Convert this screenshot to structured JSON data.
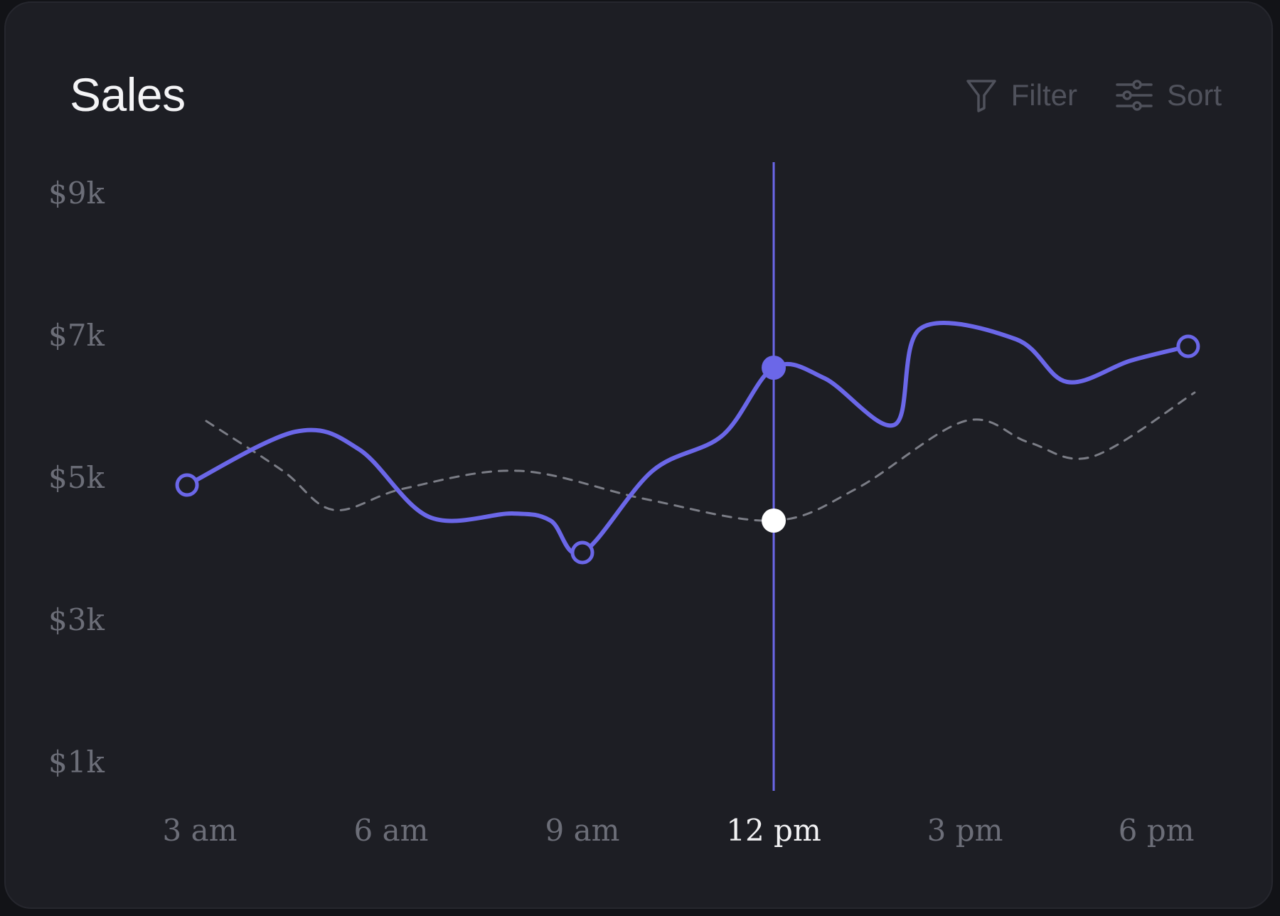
{
  "card": {
    "title": "Sales",
    "toolbar": {
      "filter_label": "Filter",
      "filter_icon": "funnel-icon",
      "sort_label": "Sort",
      "sort_icon": "sliders-icon"
    }
  },
  "colors": {
    "background": "#1d1e24",
    "primary_series": "#6b67e8",
    "comparison_series": "#7b7d86",
    "highlight_point": "#ffffff"
  },
  "chart_data": {
    "type": "line",
    "title": "Sales",
    "y_ticks": [
      "$9k",
      "$7k",
      "$5k",
      "$3k",
      "$1k"
    ],
    "y_tick_values": [
      9,
      7,
      5,
      3,
      1
    ],
    "x_ticks": [
      "3 am",
      "6 am",
      "9 am",
      "12 pm",
      "3 pm",
      "6 pm"
    ],
    "x_tick_values": [
      3,
      6,
      9,
      12,
      15,
      18
    ],
    "ylim": [
      1,
      9
    ],
    "y_unit": "$k",
    "highlighted_x": 12,
    "series": [
      {
        "style": "solid",
        "color": "#6b67e8",
        "points": [
          {
            "x": 2.8,
            "y": 4.9,
            "marker": "hollow"
          },
          {
            "x": 4.5,
            "y": 5.65
          },
          {
            "x": 5.5,
            "y": 5.4
          },
          {
            "x": 6.6,
            "y": 4.45
          },
          {
            "x": 7.9,
            "y": 4.5
          },
          {
            "x": 8.5,
            "y": 4.4
          },
          {
            "x": 9.0,
            "y": 3.95,
            "marker": "hollow"
          },
          {
            "x": 10.1,
            "y": 5.1
          },
          {
            "x": 11.2,
            "y": 5.6
          },
          {
            "x": 12.0,
            "y": 6.55,
            "marker": "filled"
          },
          {
            "x": 12.8,
            "y": 6.4
          },
          {
            "x": 13.9,
            "y": 5.75
          },
          {
            "x": 14.3,
            "y": 7.1
          },
          {
            "x": 15.8,
            "y": 6.95
          },
          {
            "x": 16.6,
            "y": 6.35
          },
          {
            "x": 17.6,
            "y": 6.65
          },
          {
            "x": 18.5,
            "y": 6.85,
            "marker": "hollow"
          }
        ]
      },
      {
        "style": "dashed",
        "color": "#7b7d86",
        "points": [
          {
            "x": 3.1,
            "y": 5.8
          },
          {
            "x": 4.3,
            "y": 5.1
          },
          {
            "x": 5.1,
            "y": 4.55
          },
          {
            "x": 6.2,
            "y": 4.85
          },
          {
            "x": 8.0,
            "y": 5.1
          },
          {
            "x": 10.0,
            "y": 4.7
          },
          {
            "x": 12.0,
            "y": 4.4,
            "marker": "highlight"
          },
          {
            "x": 13.3,
            "y": 4.85
          },
          {
            "x": 15.0,
            "y": 5.8
          },
          {
            "x": 16.0,
            "y": 5.5
          },
          {
            "x": 17.0,
            "y": 5.3
          },
          {
            "x": 18.6,
            "y": 6.2
          }
        ]
      }
    ]
  }
}
